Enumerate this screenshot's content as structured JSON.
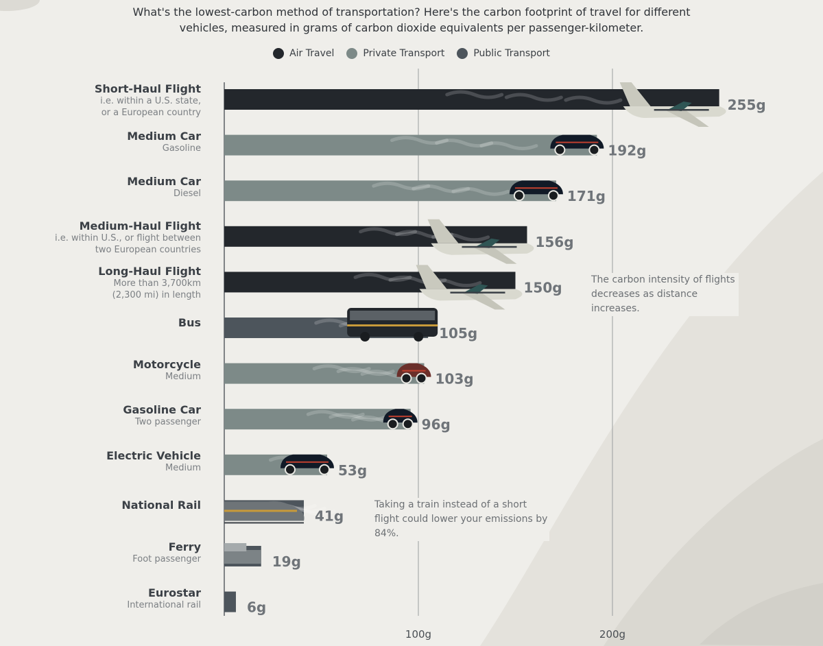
{
  "subtitle": "What's the lowest-carbon method of transportation? Here's the carbon footprint of travel for different vehicles, measured in grams of carbon dioxide equivalents per passenger-kilometer.",
  "legend": [
    {
      "label": "Air Travel",
      "color": "#23272c"
    },
    {
      "label": "Private Transport",
      "color": "#7d8a88"
    },
    {
      "label": "Public Transport",
      "color": "#4d555c"
    }
  ],
  "annotations": {
    "flights": "The carbon intensity of flights decreases as distance increases.",
    "train": "Taking a train instead of a short flight could lower your emissions by 84%."
  },
  "chart_data": {
    "type": "bar",
    "orientation": "horizontal",
    "unit_suffix": "g",
    "xlim": [
      0,
      255
    ],
    "x_ticks": [
      {
        "value": 100,
        "label": "100g"
      },
      {
        "value": 200,
        "label": "200g"
      }
    ],
    "grid": true,
    "legend_position": "top",
    "categories": [
      {
        "name": "Short-Haul Flight",
        "desc": [
          "i.e. within a U.S. state,",
          "or a European country"
        ],
        "value": 255,
        "group": "Air Travel",
        "icon": "plane-icon",
        "value_label": "255g"
      },
      {
        "name": "Medium Car",
        "desc": [
          "Gasoline"
        ],
        "value": 192,
        "group": "Private Transport",
        "icon": "suv-icon",
        "value_label": "192g"
      },
      {
        "name": "Medium Car",
        "desc": [
          "Diesel"
        ],
        "value": 171,
        "group": "Private Transport",
        "icon": "pickup-truck-icon",
        "value_label": "171g"
      },
      {
        "name": "Medium-Haul Flight",
        "desc": [
          "i.e. within U.S., or flight between",
          "two European countries"
        ],
        "value": 156,
        "group": "Air Travel",
        "icon": "plane-icon",
        "value_label": "156g"
      },
      {
        "name": "Long-Haul Flight",
        "desc": [
          "More than 3,700km",
          "(2,300 mi) in length"
        ],
        "value": 150,
        "group": "Air Travel",
        "icon": "plane-icon",
        "value_label": "150g"
      },
      {
        "name": "Bus",
        "desc": [],
        "value": 105,
        "group": "Public Transport",
        "icon": "bus-icon",
        "value_label": "105g"
      },
      {
        "name": "Motorcycle",
        "desc": [
          "Medium"
        ],
        "value": 103,
        "group": "Private Transport",
        "icon": "motorcycle-icon",
        "value_label": "103g"
      },
      {
        "name": "Gasoline Car",
        "desc": [
          "Two passenger"
        ],
        "value": 96,
        "group": "Private Transport",
        "icon": "small-car-icon",
        "value_label": "96g"
      },
      {
        "name": "Electric Vehicle",
        "desc": [
          "Medium"
        ],
        "value": 53,
        "group": "Private Transport",
        "icon": "electric-car-icon",
        "value_label": "53g"
      },
      {
        "name": "National Rail",
        "desc": [],
        "value": 41,
        "group": "Public Transport",
        "icon": "train-icon",
        "value_label": "41g"
      },
      {
        "name": "Ferry",
        "desc": [
          "Foot passenger"
        ],
        "value": 19,
        "group": "Public Transport",
        "icon": "ferry-icon",
        "value_label": "19g"
      },
      {
        "name": "Eurostar",
        "desc": [
          "International rail"
        ],
        "value": 6,
        "group": "Public Transport",
        "icon": "",
        "value_label": "6g"
      }
    ]
  }
}
